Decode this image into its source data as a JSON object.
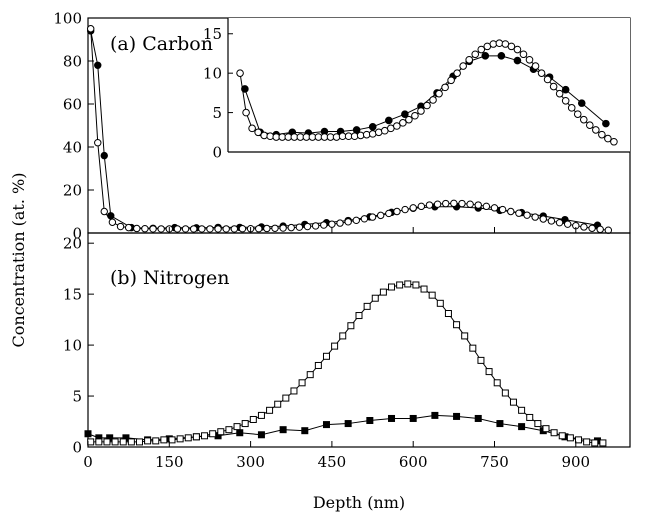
{
  "ylabel": "Concentration (at. %)",
  "xlabel": "Depth (nm)",
  "x_ticks": [
    "0",
    "150",
    "300",
    "450",
    "600",
    "750",
    "900"
  ],
  "chart_data": [
    {
      "type": "scatter",
      "title": "(a) Carbon",
      "xlim": [
        0,
        1000
      ],
      "ylim": [
        0,
        100
      ],
      "y_ticks": [
        "0",
        "20",
        "40",
        "60",
        "80",
        "100"
      ],
      "series": [
        {
          "marker": "filled-circle",
          "x": [
            5,
            18,
            30,
            42,
            80,
            120,
            160,
            200,
            240,
            280,
            320,
            360,
            400,
            440,
            480,
            520,
            560,
            600,
            640,
            680,
            720,
            760,
            800,
            840,
            880,
            940
          ],
          "y": [
            94,
            78,
            36,
            8,
            2.5,
            2.2,
            2.5,
            2.4,
            2.6,
            2.6,
            2.8,
            3.2,
            4.0,
            4.8,
            5.8,
            7.5,
            9.6,
            11.5,
            12.2,
            12.2,
            11.6,
            10.5,
            9.5,
            7.9,
            6.2,
            3.6
          ]
        },
        {
          "marker": "open-circle",
          "x": [
            5,
            18,
            30,
            45,
            60,
            75,
            90,
            105,
            120,
            135,
            150,
            165,
            180,
            195,
            210,
            225,
            240,
            255,
            270,
            285,
            300,
            315,
            330,
            345,
            360,
            375,
            390,
            405,
            420,
            435,
            450,
            465,
            480,
            495,
            510,
            525,
            540,
            555,
            570,
            585,
            600,
            615,
            630,
            645,
            660,
            675,
            690,
            705,
            720,
            735,
            750,
            765,
            780,
            795,
            810,
            825,
            840,
            855,
            870,
            885,
            900,
            915,
            930,
            945,
            960
          ],
          "y": [
            95,
            42,
            10,
            5,
            3,
            2.5,
            2.1,
            2.0,
            1.9,
            1.9,
            1.9,
            1.9,
            1.9,
            1.9,
            1.9,
            1.9,
            1.9,
            1.9,
            1.9,
            2.0,
            2.0,
            2.0,
            2.1,
            2.2,
            2.3,
            2.5,
            2.7,
            3.0,
            3.3,
            3.7,
            4.1,
            4.6,
            5.2,
            5.9,
            6.6,
            7.4,
            8.2,
            9.1,
            10.0,
            10.9,
            11.7,
            12.4,
            13.0,
            13.4,
            13.7,
            13.8,
            13.7,
            13.4,
            13.0,
            12.4,
            11.7,
            10.9,
            10.0,
            9.2,
            8.3,
            7.4,
            6.5,
            5.6,
            4.8,
            4.1,
            3.4,
            2.8,
            2.2,
            1.7,
            1.3
          ]
        }
      ],
      "inset": {
        "xlim": [
          0,
          1000
        ],
        "ylim": [
          0,
          17
        ],
        "y_ticks": [
          "0",
          "5",
          "10",
          "15"
        ]
      }
    },
    {
      "type": "scatter",
      "title": "(b) Nitrogen",
      "xlim": [
        0,
        1000
      ],
      "ylim": [
        0,
        21
      ],
      "y_ticks": [
        "0",
        "5",
        "10",
        "15",
        "20"
      ],
      "series": [
        {
          "marker": "filled-square",
          "x": [
            0,
            20,
            40,
            70,
            110,
            150,
            200,
            240,
            280,
            320,
            360,
            400,
            440,
            480,
            520,
            560,
            600,
            640,
            680,
            720,
            760,
            800,
            840,
            880,
            940
          ],
          "y": [
            1.3,
            0.9,
            0.9,
            0.9,
            0.7,
            0.8,
            1.0,
            1.1,
            1.4,
            1.2,
            1.7,
            1.6,
            2.2,
            2.3,
            2.6,
            2.8,
            2.8,
            3.1,
            3.0,
            2.8,
            2.3,
            2.0,
            1.6,
            1.0,
            0.6
          ]
        },
        {
          "marker": "open-square",
          "x": [
            5,
            20,
            35,
            50,
            65,
            80,
            95,
            110,
            125,
            140,
            155,
            170,
            185,
            200,
            215,
            230,
            245,
            260,
            275,
            290,
            305,
            320,
            335,
            350,
            365,
            380,
            395,
            410,
            425,
            440,
            455,
            470,
            485,
            500,
            515,
            530,
            545,
            560,
            575,
            590,
            605,
            620,
            635,
            650,
            665,
            680,
            695,
            710,
            725,
            740,
            755,
            770,
            785,
            800,
            815,
            830,
            845,
            860,
            875,
            890,
            905,
            920,
            935,
            950
          ],
          "y": [
            0.5,
            0.5,
            0.5,
            0.5,
            0.5,
            0.5,
            0.5,
            0.6,
            0.6,
            0.7,
            0.7,
            0.8,
            0.9,
            1.0,
            1.1,
            1.3,
            1.5,
            1.7,
            2.0,
            2.3,
            2.7,
            3.1,
            3.6,
            4.2,
            4.8,
            5.5,
            6.3,
            7.1,
            8.0,
            8.9,
            9.9,
            10.9,
            11.9,
            12.9,
            13.8,
            14.6,
            15.2,
            15.7,
            15.9,
            16.0,
            15.9,
            15.5,
            14.9,
            14.1,
            13.1,
            12.0,
            10.9,
            9.7,
            8.5,
            7.4,
            6.3,
            5.3,
            4.4,
            3.6,
            2.9,
            2.3,
            1.8,
            1.4,
            1.1,
            0.9,
            0.7,
            0.5,
            0.4,
            0.4
          ]
        }
      ]
    }
  ]
}
